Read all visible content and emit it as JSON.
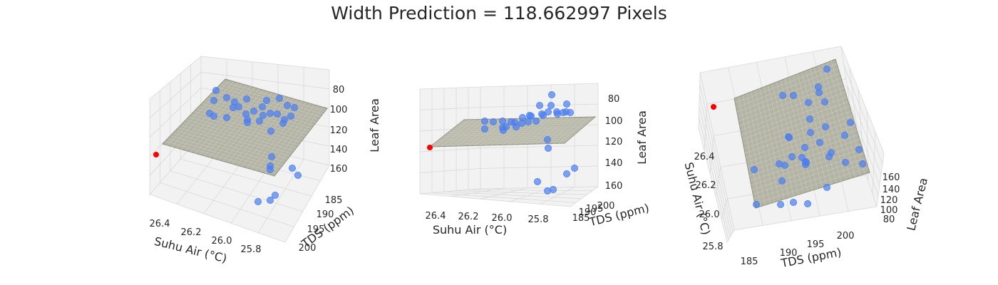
{
  "title": "Width Prediction = 118.662997 Pixels",
  "colors": {
    "observed": "#4a7ef0",
    "prediction": "#ff0000",
    "plane": "#a9a999",
    "pane": "#f2f2f2",
    "grid": "#d9d9d9"
  },
  "chart_data": [
    {
      "type": "scatter",
      "view": "elevation 30, azimuth -60",
      "xlabel": "Suhu Air (°C)",
      "ylabel": "TDS (ppm)",
      "zlabel": "Leaf Area",
      "xticks": [
        "26.4",
        "26.2",
        "26.0",
        "25.8"
      ],
      "yticks": [
        "185",
        "190",
        "195",
        "200"
      ],
      "zticks": [
        "80",
        "100",
        "120",
        "140",
        "160"
      ],
      "series": [
        {
          "kind": "regression plane"
        },
        {
          "kind": "observed points",
          "count": 35
        },
        {
          "kind": "prediction point",
          "value": 118.662997
        }
      ]
    },
    {
      "type": "scatter",
      "view": "elevation 5, azimuth -60",
      "xlabel": "Suhu Air (°C)",
      "ylabel": "TDS (ppm)",
      "zlabel": "Leaf Area",
      "xticks": [
        "26.4",
        "26.2",
        "26.0",
        "25.8"
      ],
      "yticks": [
        "185",
        "190",
        "195",
        "200"
      ],
      "zticks": [
        "80",
        "100",
        "120",
        "140",
        "160"
      ],
      "series": [
        {
          "kind": "regression plane"
        },
        {
          "kind": "observed points",
          "count": 35
        },
        {
          "kind": "prediction point",
          "value": 118.662997
        }
      ]
    },
    {
      "type": "scatter",
      "view": "elevation 60, azimuth 165",
      "xlabel": "Suhu Air (°C)",
      "ylabel": "TDS (ppm)",
      "zlabel": "Leaf Area",
      "xticks": [
        "26.4",
        "26.2",
        "26.0",
        "25.8"
      ],
      "yticks": [
        "185",
        "190",
        "195",
        "200"
      ],
      "zticks": [
        "80",
        "100",
        "120",
        "140",
        "160"
      ],
      "series": [
        {
          "kind": "regression plane"
        },
        {
          "kind": "observed points",
          "count": 35
        },
        {
          "kind": "prediction point",
          "value": 118.662997
        }
      ]
    }
  ]
}
